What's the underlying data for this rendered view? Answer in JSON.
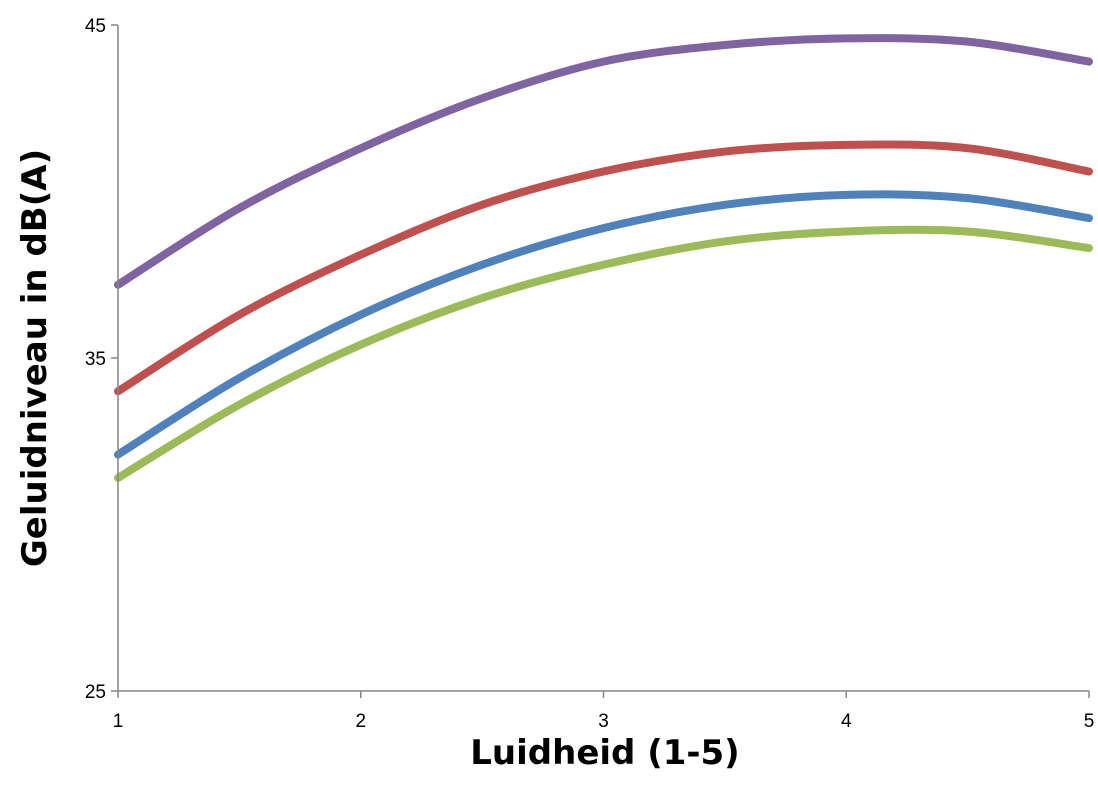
{
  "chart_data": {
    "type": "line",
    "xlabel": "Luidheid (1-5)",
    "ylabel": "Geluidniveau in dB(A)",
    "xlim": [
      1,
      5
    ],
    "ylim": [
      25,
      45
    ],
    "x_ticks": [
      "1",
      "2",
      "3",
      "4",
      "5"
    ],
    "y_ticks": [
      "25",
      "35",
      "45"
    ],
    "grid": false,
    "legend": "none",
    "x": [
      1,
      1.5,
      2,
      2.5,
      3,
      3.5,
      4,
      4.5,
      5
    ],
    "series": [
      {
        "color": "#8064A2",
        "values": [
          37.2,
          39.5,
          41.3,
          42.8,
          43.9,
          44.4,
          44.6,
          44.5,
          43.9
        ]
      },
      {
        "color": "#C0504D",
        "values": [
          34.0,
          36.3,
          38.1,
          39.6,
          40.6,
          41.2,
          41.4,
          41.3,
          40.6
        ]
      },
      {
        "color": "#4F81BD",
        "values": [
          32.1,
          34.4,
          36.3,
          37.8,
          38.9,
          39.6,
          39.9,
          39.8,
          39.2
        ]
      },
      {
        "color": "#9BBB59",
        "values": [
          31.4,
          33.6,
          35.4,
          36.8,
          37.8,
          38.5,
          38.8,
          38.8,
          38.3
        ]
      }
    ]
  }
}
